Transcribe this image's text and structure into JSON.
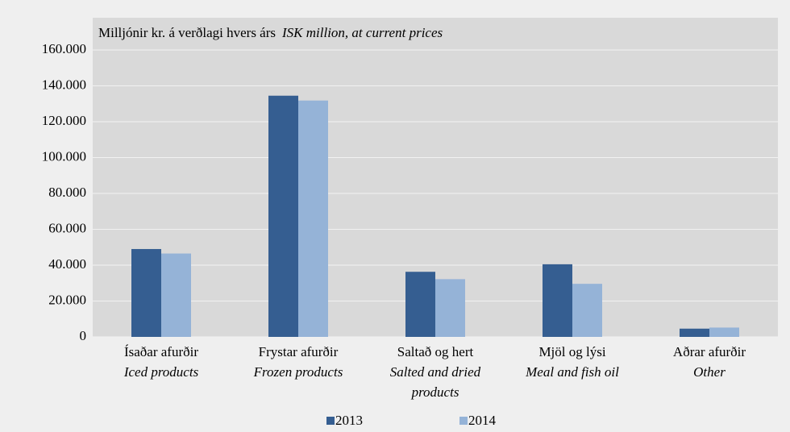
{
  "chart_data": {
    "type": "bar",
    "y_axis_label": "Milljónir kr. á verðlagi hvers árs",
    "y_axis_label_en": "ISK million, at current prices",
    "categories": [
      "Ísaðar afurðir",
      "Frystar afurðir",
      "Saltað og hert",
      "Mjöl og lýsi",
      "Aðrar afurðir"
    ],
    "categories_en": [
      "Iced products",
      "Frozen products",
      "Salted and dried products",
      "Meal and fish oil",
      "Other"
    ],
    "series": [
      {
        "name": "2013",
        "color": "#355e91",
        "values": [
          49000,
          134500,
          36300,
          40500,
          4600
        ]
      },
      {
        "name": "2014",
        "color": "#95b3d7",
        "values": [
          46500,
          131800,
          32200,
          29600,
          5200
        ]
      }
    ],
    "ylim": [
      0,
      160000
    ],
    "yticks": [
      0,
      {
        "value": 20000,
        "label": "20.000"
      },
      {
        "value": 40000,
        "label": "40.000"
      },
      {
        "value": 60000,
        "label": "60.000"
      },
      {
        "value": 80000,
        "label": "80.000"
      },
      {
        "value": 100000,
        "label": "100.000"
      },
      {
        "value": 120000,
        "label": "120.000"
      },
      {
        "value": 140000,
        "label": "140.000"
      },
      {
        "value": 160000,
        "label": "160.000"
      }
    ],
    "grid": true,
    "legend": "bottom"
  }
}
